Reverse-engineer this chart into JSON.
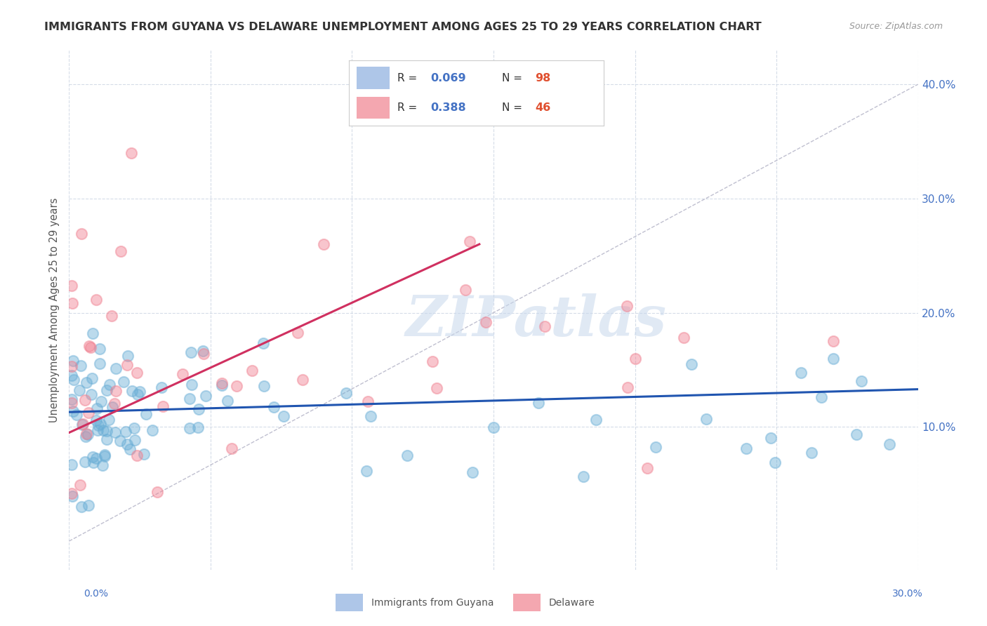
{
  "title": "IMMIGRANTS FROM GUYANA VS DELAWARE UNEMPLOYMENT AMONG AGES 25 TO 29 YEARS CORRELATION CHART",
  "source": "Source: ZipAtlas.com",
  "ylabel": "Unemployment Among Ages 25 to 29 years",
  "legend_blue_R": "0.069",
  "legend_blue_N": "98",
  "legend_pink_R": "0.388",
  "legend_pink_N": "46",
  "bottom_left_label": "0.0%",
  "bottom_right_label": "30.0%",
  "bottom_legend_blue": "Immigrants from Guyana",
  "bottom_legend_pink": "Delaware",
  "ytick_labels": [
    "10.0%",
    "20.0%",
    "30.0%",
    "40.0%"
  ],
  "ytick_values": [
    0.1,
    0.2,
    0.3,
    0.4
  ],
  "xlim": [
    0.0,
    0.3
  ],
  "ylim": [
    -0.025,
    0.43
  ],
  "watermark": "ZIPatlas",
  "background_color": "#ffffff",
  "grid_color": "#d5dce8",
  "scatter_blue_color": "#6aaed6",
  "scatter_pink_color": "#f08090",
  "trend_blue_color": "#2055b0",
  "trend_pink_color": "#d03060",
  "diagonal_color": "#c0c0d0",
  "trend_blue_x0": 0.0,
  "trend_blue_y0": 0.113,
  "trend_blue_x1": 0.3,
  "trend_blue_y1": 0.133,
  "trend_pink_x0": 0.0,
  "trend_pink_y0": 0.095,
  "trend_pink_x1": 0.145,
  "trend_pink_y1": 0.26
}
